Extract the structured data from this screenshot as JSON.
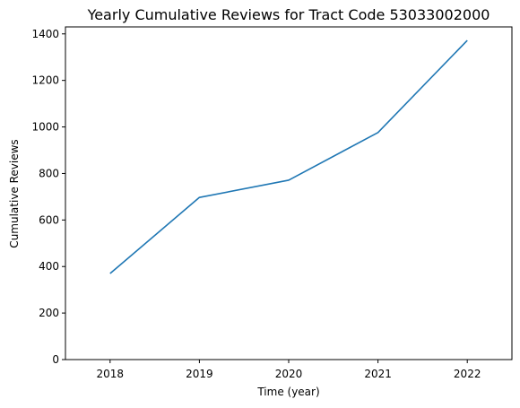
{
  "chart_data": {
    "type": "line",
    "title": "Yearly Cumulative Reviews for Tract Code 53033002000",
    "xlabel": "Time (year)",
    "ylabel": "Cumulative Reviews",
    "x": [
      2018,
      2019,
      2020,
      2021,
      2022
    ],
    "x_tick_labels": [
      "2018",
      "2019",
      "2020",
      "2021",
      "2022"
    ],
    "series": [
      {
        "values": [
          370,
          697,
          771,
          976,
          1372
        ],
        "color": "#1f77b4"
      }
    ],
    "xlim": [
      2017.5,
      2022.5
    ],
    "ylim": [
      0,
      1430
    ],
    "y_ticks": [
      0,
      200,
      400,
      600,
      800,
      1000,
      1200,
      1400
    ],
    "y_tick_labels": [
      "0",
      "200",
      "400",
      "600",
      "800",
      "1000",
      "1200",
      "1400"
    ],
    "grid": false,
    "legend": "none"
  }
}
